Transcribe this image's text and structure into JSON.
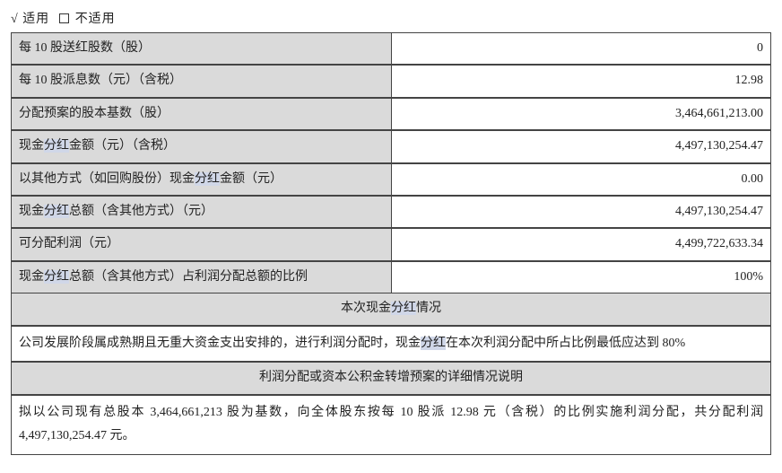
{
  "header": {
    "check": "√",
    "apply": "适用",
    "notApply": "不适用"
  },
  "rows": [
    {
      "labelParts": [
        "每 10 股送红股数（股）"
      ],
      "value": "0"
    },
    {
      "labelParts": [
        "每 10 股派息数（元）（含税）"
      ],
      "value": "12.98"
    },
    {
      "labelParts": [
        "分配预案的股本基数（股）"
      ],
      "value": "3,464,661,213.00"
    },
    {
      "labelParts": [
        "现金",
        {
          "hl": "分红"
        },
        "金额（元）（含税）"
      ],
      "value": "4,497,130,254.47"
    },
    {
      "labelParts": [
        "以其他方式（如回购股份）现金",
        {
          "hl": "分红"
        },
        "金额（元）"
      ],
      "value": "0.00"
    },
    {
      "labelParts": [
        "现金",
        {
          "hl": "分红"
        },
        "总额（含其他方式）（元）"
      ],
      "value": "4,497,130,254.47"
    },
    {
      "labelParts": [
        "可分配利润（元）"
      ],
      "value": "4,499,722,633.34"
    },
    {
      "labelParts": [
        "现金",
        {
          "hl": "分红"
        },
        "总额（含其他方式）占利润分配总额的比例"
      ],
      "value": "100%"
    }
  ],
  "section1": {
    "titleParts": [
      "本次现金",
      {
        "hl": "分红"
      },
      "情况"
    ],
    "bodyParts": [
      "公司发展阶段属成熟期且无重大资金支出安排的，进行利润分配时，现金",
      {
        "hl": "分红"
      },
      "在本次利润分配中所占比例最低应达到 80%"
    ]
  },
  "section2": {
    "title": "利润分配或资本公积金转增预案的详细情况说明",
    "body": "拟以公司现有总股本 3,464,661,213 股为基数，向全体股东按每 10 股派 12.98 元（含税）的比例实施利润分配，共分配利润 4,497,130,254.47 元。"
  }
}
